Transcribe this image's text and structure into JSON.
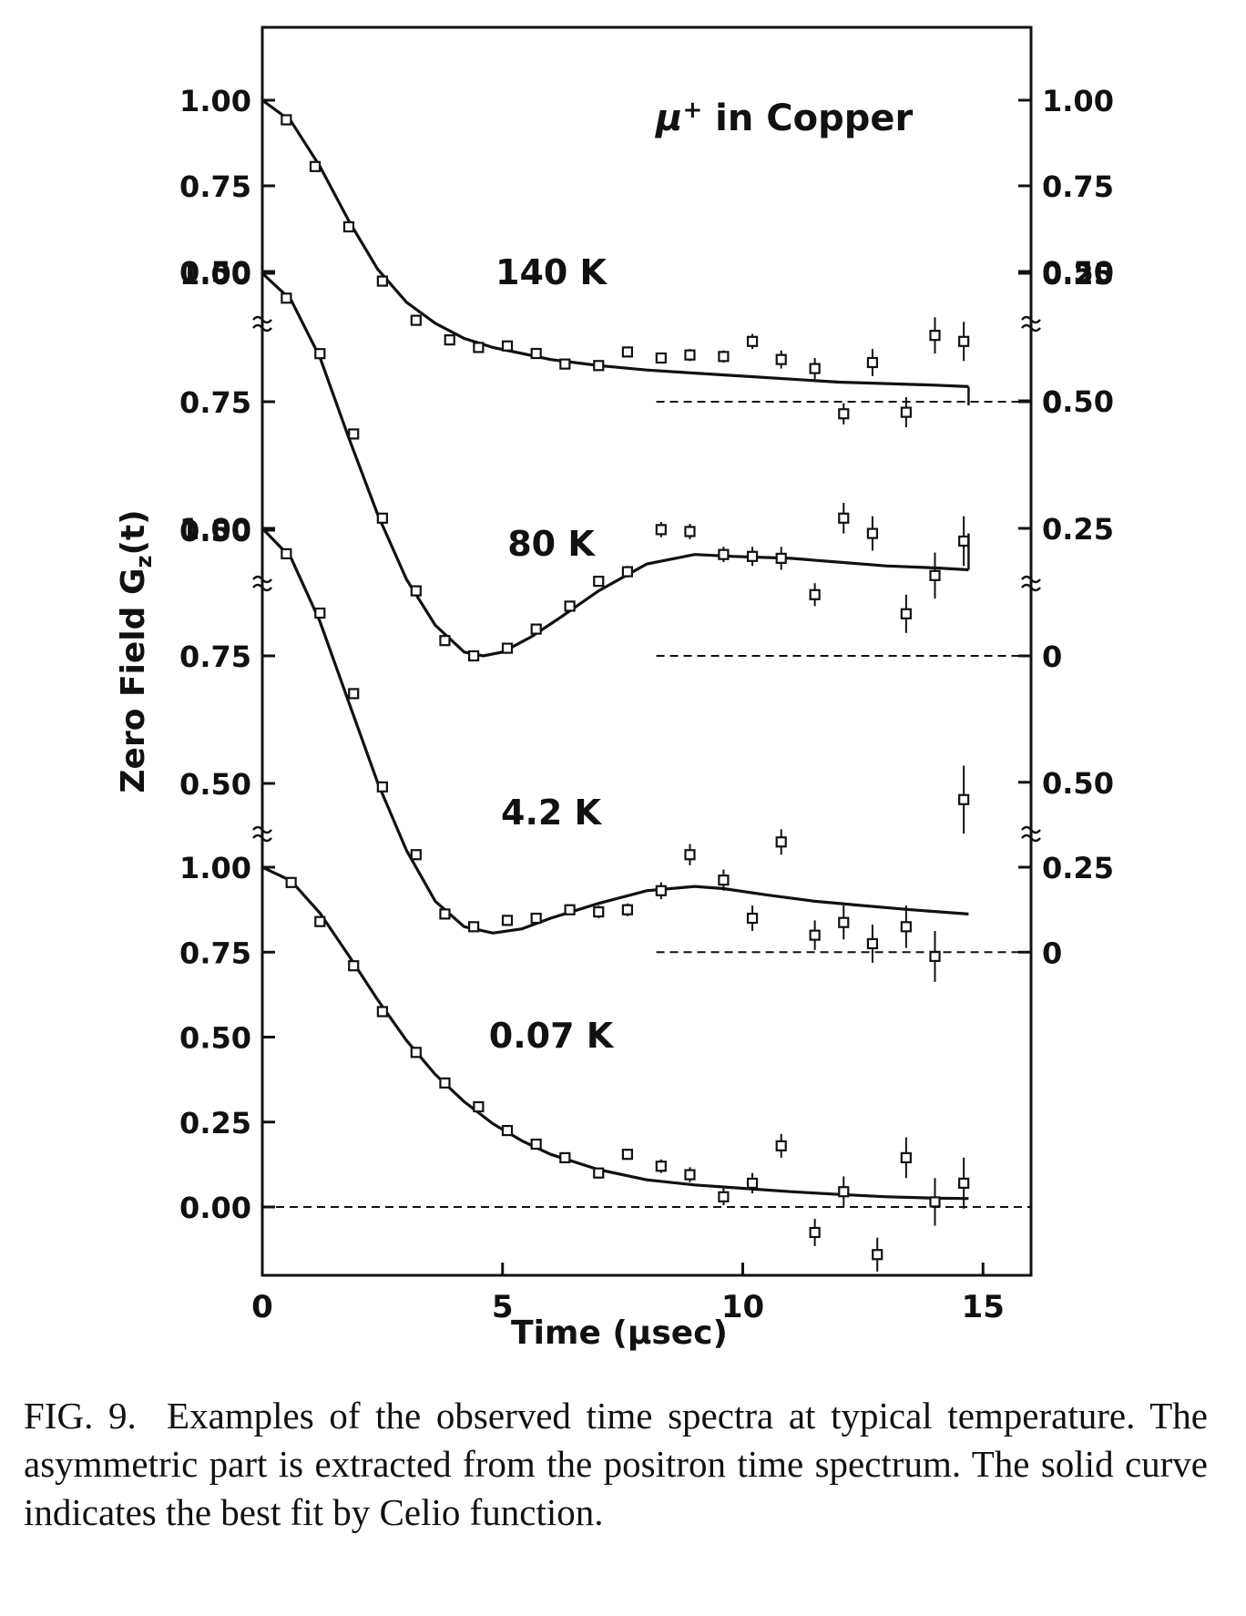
{
  "chart_data": {
    "type": "scatter",
    "title": "μ⁺ in Copper",
    "title_symbol": "μ",
    "title_superscript": "+",
    "title_rest": " in Copper",
    "xlabel": "Time (μsec)",
    "ylabel": "Zero Field Gz(t)",
    "ylabel_main": "Zero Field G",
    "ylabel_sub": "z",
    "ylabel_tail": "(t)",
    "xlim": [
      0,
      16
    ],
    "x_ticks": [
      0,
      5,
      10,
      15
    ],
    "x_tick_labels": [
      "0",
      "5",
      "10",
      "15"
    ],
    "grid": false,
    "legend": "none",
    "panels": [
      {
        "label": "140 K",
        "ylim": [
          0.4,
          1.1
        ],
        "left_ticks": [
          0.5,
          0.75,
          1.0
        ],
        "left_tick_labels": [
          "0.50",
          "0.75",
          "1.00"
        ],
        "right_ticks": [
          0.5,
          0.75,
          1.0
        ],
        "right_tick_labels": [
          "0.50",
          "0.75",
          "1.00"
        ]
      },
      {
        "label": "80 K",
        "ylim": [
          0.45,
          1.2
        ],
        "left_ticks": [
          0.5,
          0.75,
          1.0
        ],
        "left_tick_labels": [
          "0.50",
          "0.75",
          "1.00"
        ],
        "right_ticks": [
          0,
          0.25
        ],
        "right_tick_labels": [
          "0",
          "0.25"
        ],
        "right_offset": 0.75,
        "points": [
          {
            "x": 0.5,
            "y": 0.935,
            "err": 0.005
          },
          {
            "x": 1.1,
            "y": 0.78,
            "err": 0.005
          },
          {
            "x": 1.8,
            "y": 0.58,
            "err": 0.005
          },
          {
            "x": 2.5,
            "y": 0.4,
            "err": 0.005
          },
          {
            "x": 3.2,
            "y": 0.27,
            "err": 0.005
          },
          {
            "x": 3.9,
            "y": 0.205,
            "err": 0.006
          },
          {
            "x": 4.5,
            "y": 0.18,
            "err": 0.008
          },
          {
            "x": 5.1,
            "y": 0.185,
            "err": 0.008
          },
          {
            "x": 5.7,
            "y": 0.16,
            "err": 0.01
          },
          {
            "x": 6.3,
            "y": 0.125,
            "err": 0.01
          },
          {
            "x": 7.0,
            "y": 0.12,
            "err": 0.012
          },
          {
            "x": 7.6,
            "y": 0.165,
            "err": 0.015
          },
          {
            "x": 8.3,
            "y": 0.145,
            "err": 0.015
          },
          {
            "x": 8.9,
            "y": 0.155,
            "err": 0.02
          },
          {
            "x": 9.6,
            "y": 0.15,
            "err": 0.02
          },
          {
            "x": 10.2,
            "y": 0.2,
            "err": 0.025
          },
          {
            "x": 10.8,
            "y": 0.14,
            "err": 0.03
          },
          {
            "x": 11.5,
            "y": 0.11,
            "err": 0.035
          },
          {
            "x": 12.1,
            "y": -0.04,
            "err": 0.035
          },
          {
            "x": 12.7,
            "y": 0.13,
            "err": 0.045
          },
          {
            "x": 13.4,
            "y": -0.035,
            "err": 0.05
          },
          {
            "x": 14.0,
            "y": 0.22,
            "err": 0.06
          },
          {
            "x": 14.6,
            "y": 0.2,
            "err": 0.065
          }
        ],
        "fit": {
          "x": [
            0,
            0.6,
            1.2,
            1.8,
            2.4,
            3.0,
            3.6,
            4.2,
            4.8,
            5.4,
            6.0,
            7.0,
            8.0,
            9.0,
            10.0,
            11.0,
            12.0,
            13.0,
            14.0,
            14.7
          ],
          "y": [
            1.0,
            0.93,
            0.78,
            0.6,
            0.44,
            0.33,
            0.26,
            0.21,
            0.18,
            0.16,
            0.14,
            0.12,
            0.105,
            0.095,
            0.085,
            0.075,
            0.065,
            0.06,
            0.055,
            0.05
          ]
        },
        "zero_line": {
          "x0": 8.2,
          "x1": 16
        }
      },
      {
        "label": "4.2 K",
        "ylim": [
          0.45,
          1.25
        ],
        "left_ticks": [
          0.5,
          0.75,
          1.0
        ],
        "left_tick_labels": [
          "0.50",
          "0.75",
          "1.00"
        ],
        "right_ticks": [
          0,
          0.25,
          0.5
        ],
        "right_tick_labels": [
          "0",
          "0.25",
          "0.50"
        ],
        "right_offset": 0.75,
        "points": [
          {
            "x": 0.5,
            "y": 0.935,
            "err": 0.005
          },
          {
            "x": 1.2,
            "y": 0.79,
            "err": 0.005
          },
          {
            "x": 1.9,
            "y": 0.58,
            "err": 0.005
          },
          {
            "x": 2.5,
            "y": 0.36,
            "err": 0.005
          },
          {
            "x": 3.2,
            "y": 0.17,
            "err": 0.006
          },
          {
            "x": 3.8,
            "y": 0.04,
            "err": 0.006
          },
          {
            "x": 4.4,
            "y": 0.0,
            "err": 0.008
          },
          {
            "x": 5.1,
            "y": 0.02,
            "err": 0.008
          },
          {
            "x": 5.7,
            "y": 0.07,
            "err": 0.01
          },
          {
            "x": 6.4,
            "y": 0.13,
            "err": 0.01
          },
          {
            "x": 7.0,
            "y": 0.195,
            "err": 0.012
          },
          {
            "x": 7.6,
            "y": 0.22,
            "err": 0.015
          },
          {
            "x": 8.3,
            "y": 0.33,
            "err": 0.02
          },
          {
            "x": 8.9,
            "y": 0.325,
            "err": 0.02
          },
          {
            "x": 9.6,
            "y": 0.265,
            "err": 0.02
          },
          {
            "x": 10.2,
            "y": 0.26,
            "err": 0.025
          },
          {
            "x": 10.8,
            "y": 0.255,
            "err": 0.03
          },
          {
            "x": 11.5,
            "y": 0.16,
            "err": 0.03
          },
          {
            "x": 12.1,
            "y": 0.36,
            "err": 0.04
          },
          {
            "x": 12.7,
            "y": 0.32,
            "err": 0.045
          },
          {
            "x": 13.4,
            "y": 0.11,
            "err": 0.05
          },
          {
            "x": 14.0,
            "y": 0.21,
            "err": 0.06
          },
          {
            "x": 14.6,
            "y": 0.3,
            "err": 0.065
          }
        ],
        "fit": {
          "x": [
            0,
            0.6,
            1.2,
            1.8,
            2.4,
            3.0,
            3.6,
            4.2,
            4.6,
            5.0,
            5.6,
            6.2,
            7.0,
            8.0,
            9.0,
            9.8,
            11.0,
            12.0,
            13.0,
            14.0,
            14.7
          ],
          "y": [
            1.0,
            0.93,
            0.78,
            0.57,
            0.37,
            0.2,
            0.08,
            0.01,
            0.0,
            0.01,
            0.05,
            0.1,
            0.17,
            0.24,
            0.265,
            0.26,
            0.255,
            0.245,
            0.235,
            0.23,
            0.225
          ]
        },
        "zero_line": {
          "x0": 8.2,
          "x1": 16
        }
      },
      {
        "label": "0.07 K",
        "ylim": [
          -0.2,
          1.25
        ],
        "left_ticks": [
          0.0,
          0.25,
          0.5,
          0.75,
          1.0
        ],
        "left_tick_labels": [
          "0.00",
          "0.25",
          "0.50",
          "0.75",
          "1.00"
        ],
        "right_ticks": [
          0,
          0.25,
          0.5
        ],
        "right_tick_labels": [
          "0",
          "0.25",
          "0.50"
        ],
        "right_offset": 0.75,
        "points": [
          {
            "x": 0.5,
            "y": 0.94,
            "err": 0.005
          },
          {
            "x": 1.2,
            "y": 0.8,
            "err": 0.005
          },
          {
            "x": 1.9,
            "y": 0.61,
            "err": 0.005
          },
          {
            "x": 2.5,
            "y": 0.39,
            "err": 0.005
          },
          {
            "x": 3.2,
            "y": 0.23,
            "err": 0.006
          },
          {
            "x": 3.8,
            "y": 0.09,
            "err": 0.006
          },
          {
            "x": 4.4,
            "y": 0.06,
            "err": 0.008
          },
          {
            "x": 5.1,
            "y": 0.075,
            "err": 0.008
          },
          {
            "x": 5.7,
            "y": 0.08,
            "err": 0.01
          },
          {
            "x": 6.4,
            "y": 0.1,
            "err": 0.01
          },
          {
            "x": 7.0,
            "y": 0.095,
            "err": 0.015
          },
          {
            "x": 7.6,
            "y": 0.1,
            "err": 0.015
          },
          {
            "x": 8.3,
            "y": 0.145,
            "err": 0.02
          },
          {
            "x": 8.9,
            "y": 0.23,
            "err": 0.025
          },
          {
            "x": 9.6,
            "y": 0.17,
            "err": 0.025
          },
          {
            "x": 10.2,
            "y": 0.08,
            "err": 0.03
          },
          {
            "x": 10.8,
            "y": 0.26,
            "err": 0.03
          },
          {
            "x": 11.5,
            "y": 0.04,
            "err": 0.035
          },
          {
            "x": 12.1,
            "y": 0.07,
            "err": 0.04
          },
          {
            "x": 12.7,
            "y": 0.02,
            "err": 0.045
          },
          {
            "x": 13.4,
            "y": 0.06,
            "err": 0.05
          },
          {
            "x": 14.0,
            "y": -0.01,
            "err": 0.06
          },
          {
            "x": 14.6,
            "y": 0.36,
            "err": 0.08
          }
        ],
        "fit": {
          "x": [
            0,
            0.6,
            1.2,
            1.8,
            2.4,
            3.0,
            3.6,
            4.2,
            4.8,
            5.4,
            6.0,
            7.0,
            8.0,
            9.0,
            9.6,
            10.5,
            11.5,
            12.5,
            13.5,
            14.7
          ],
          "y": [
            1.0,
            0.93,
            0.78,
            0.59,
            0.4,
            0.24,
            0.12,
            0.06,
            0.045,
            0.055,
            0.08,
            0.115,
            0.145,
            0.155,
            0.15,
            0.135,
            0.12,
            0.11,
            0.1,
            0.09
          ]
        },
        "zero_line": {
          "x0": 8.2,
          "x1": 16
        }
      }
    ],
    "bottom_series": {
      "label": "0.07 K",
      "points": [
        {
          "x": 0.6,
          "y": 0.955,
          "err": 0.005
        },
        {
          "x": 1.2,
          "y": 0.84,
          "err": 0.005
        },
        {
          "x": 1.9,
          "y": 0.71,
          "err": 0.005
        },
        {
          "x": 2.5,
          "y": 0.575,
          "err": 0.005
        },
        {
          "x": 3.2,
          "y": 0.455,
          "err": 0.006
        },
        {
          "x": 3.8,
          "y": 0.365,
          "err": 0.006
        },
        {
          "x": 4.5,
          "y": 0.295,
          "err": 0.008
        },
        {
          "x": 5.1,
          "y": 0.225,
          "err": 0.008
        },
        {
          "x": 5.7,
          "y": 0.185,
          "err": 0.01
        },
        {
          "x": 6.3,
          "y": 0.145,
          "err": 0.012
        },
        {
          "x": 7.0,
          "y": 0.1,
          "err": 0.015
        },
        {
          "x": 7.6,
          "y": 0.155,
          "err": 0.018
        },
        {
          "x": 8.3,
          "y": 0.12,
          "err": 0.02
        },
        {
          "x": 8.9,
          "y": 0.095,
          "err": 0.022
        },
        {
          "x": 9.6,
          "y": 0.03,
          "err": 0.025
        },
        {
          "x": 10.2,
          "y": 0.07,
          "err": 0.03
        },
        {
          "x": 10.8,
          "y": 0.18,
          "err": 0.035
        },
        {
          "x": 11.5,
          "y": -0.075,
          "err": 0.04
        },
        {
          "x": 12.1,
          "y": 0.045,
          "err": 0.045
        },
        {
          "x": 12.8,
          "y": -0.14,
          "err": 0.05
        },
        {
          "x": 13.4,
          "y": 0.145,
          "err": 0.06
        },
        {
          "x": 14.0,
          "y": 0.015,
          "err": 0.07
        },
        {
          "x": 14.6,
          "y": 0.07,
          "err": 0.075
        }
      ],
      "fit": {
        "x": [
          0,
          0.6,
          1.2,
          1.8,
          2.4,
          3.0,
          3.6,
          4.2,
          4.8,
          5.4,
          6.0,
          7.0,
          8.0,
          9.0,
          10.0,
          11.0,
          12.0,
          13.0,
          14.0,
          14.7
        ],
        "y": [
          1.0,
          0.96,
          0.865,
          0.74,
          0.61,
          0.49,
          0.39,
          0.31,
          0.245,
          0.195,
          0.155,
          0.11,
          0.08,
          0.065,
          0.055,
          0.045,
          0.037,
          0.03,
          0.026,
          0.025
        ]
      }
    }
  },
  "caption": {
    "label": "FIG. 9.",
    "text": "Examples of the observed time spectra at typical temperature. The asymmetric part is extracted from the positron time spectrum. The solid curve indicates the best fit by Celio function."
  }
}
